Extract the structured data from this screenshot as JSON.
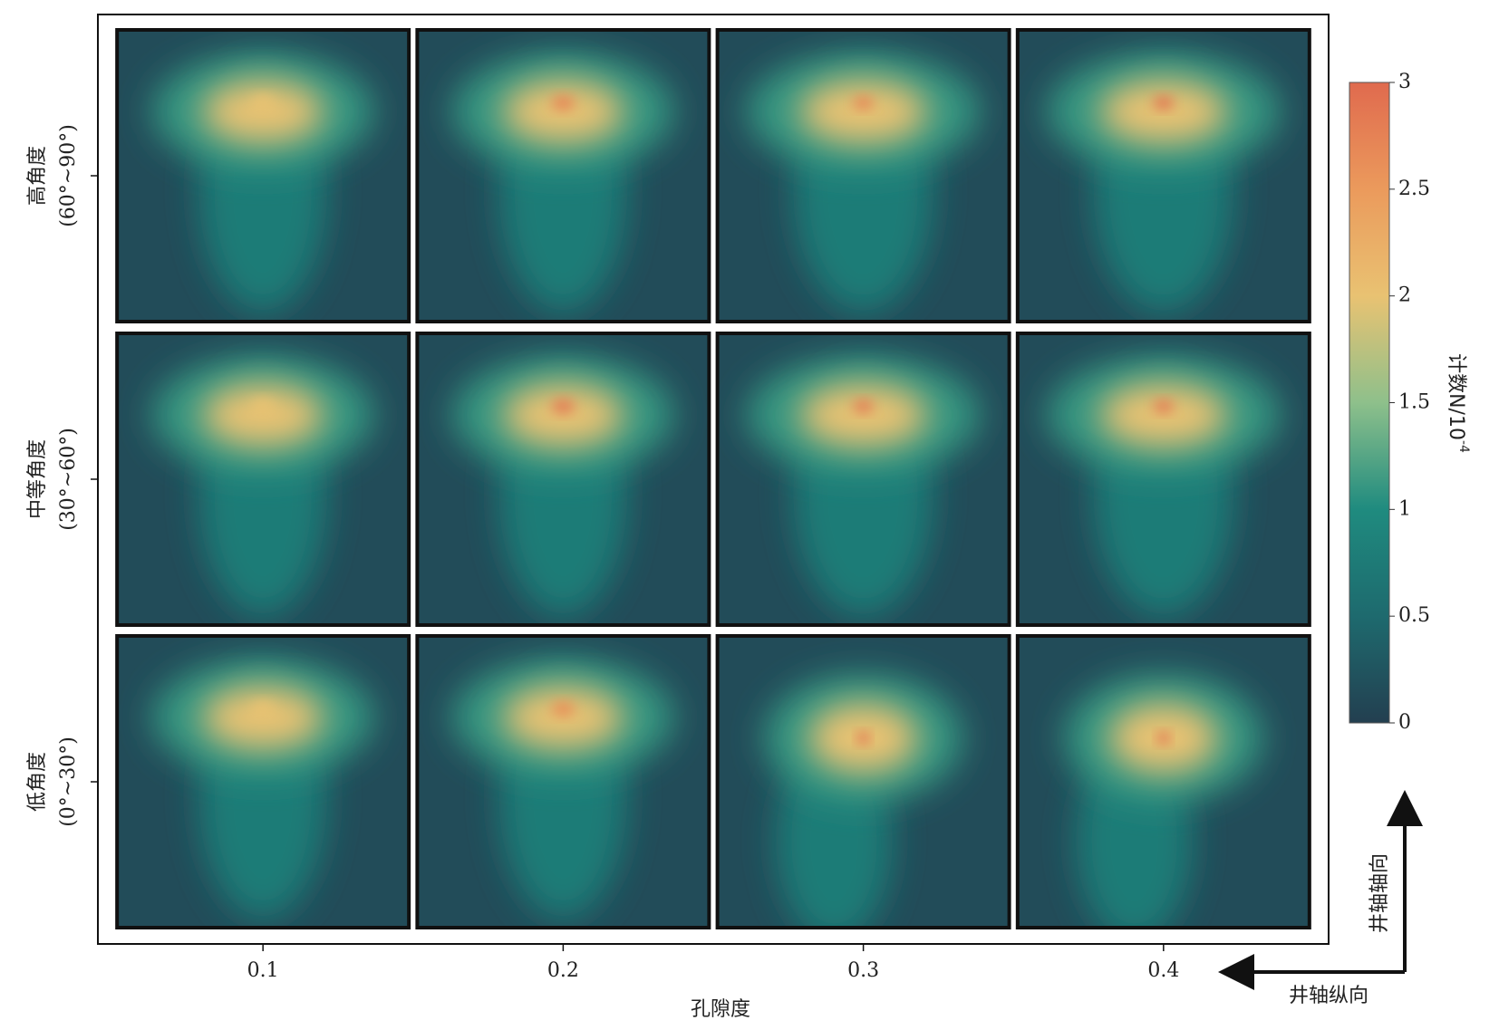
{
  "chart_data": {
    "type": "heatmap-grid",
    "xlabel": "孔隙度",
    "xlim": [
      0.045,
      0.455
    ],
    "xticks": [
      0.1,
      0.2,
      0.3,
      0.4
    ],
    "rows": [
      {
        "label": "高角度",
        "range": "(60°~90°)",
        "peaks": [
          2.0,
          2.7,
          2.7,
          2.9
        ]
      },
      {
        "label": "中等角度",
        "range": "(30°~60°)",
        "peaks": [
          2.0,
          2.8,
          2.8,
          2.8
        ]
      },
      {
        "label": "低角度",
        "range": "(0°~30°)",
        "peaks": [
          2.0,
          2.6,
          3.0,
          3.0
        ]
      }
    ],
    "colorbar": {
      "label": "计数N/10",
      "label_exponent": "-4",
      "clim": [
        0,
        3
      ],
      "ticks": [
        0,
        0.5,
        1,
        1.5,
        2,
        2.5,
        3
      ],
      "colormap": [
        "#233f50",
        "#1e6a6e",
        "#1f8b7f",
        "#8ec08b",
        "#e9c272",
        "#eb9a5c",
        "#e06a4e"
      ]
    },
    "annotations": {
      "axial": "井轴轴向",
      "longitudinal": "井轴纵向"
    }
  }
}
